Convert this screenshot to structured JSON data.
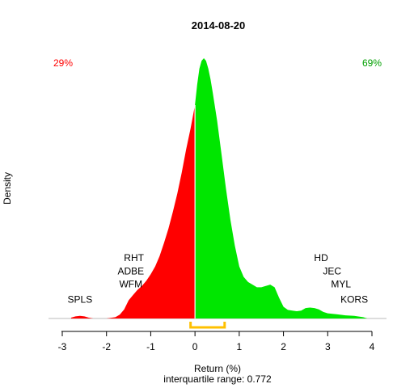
{
  "chart_data": {
    "type": "area",
    "title": "2014-08-20",
    "xlabel": "Return (%)",
    "ylabel": "Density",
    "subtitle": "interquartile range: 0.772",
    "xlim": [
      -3.3,
      4.15
    ],
    "ylim": [
      0,
      1
    ],
    "xticks": [
      -3,
      -2,
      -1,
      0,
      1,
      2,
      3,
      4
    ],
    "tick_labels": [
      "-3",
      "-2",
      "-1",
      "0",
      "1",
      "2",
      "3",
      "4"
    ],
    "pct_negative": "29%",
    "pct_positive": "69%",
    "colors": {
      "negative": "#ff0000",
      "positive": "#00e600",
      "iqr": "#ffc000",
      "axis": "#000000",
      "baseline": "#bbbbbb"
    },
    "split_at": 0,
    "iqr_range": [
      -0.1,
      0.67
    ],
    "density": {
      "x": [
        -2.8,
        -2.7,
        -2.6,
        -2.5,
        -2.4,
        -2.3,
        -2.0,
        -1.8,
        -1.7,
        -1.6,
        -1.5,
        -1.4,
        -1.3,
        -1.2,
        -1.1,
        -1.0,
        -0.9,
        -0.8,
        -0.7,
        -0.6,
        -0.5,
        -0.4,
        -0.3,
        -0.2,
        -0.1,
        0.0,
        0.05,
        0.1,
        0.15,
        0.2,
        0.25,
        0.3,
        0.35,
        0.4,
        0.5,
        0.6,
        0.7,
        0.8,
        0.9,
        1.0,
        1.1,
        1.2,
        1.3,
        1.4,
        1.5,
        1.6,
        1.7,
        1.8,
        1.9,
        2.0,
        2.1,
        2.2,
        2.3,
        2.4,
        2.5,
        2.6,
        2.7,
        2.8,
        2.9,
        3.0,
        3.2,
        3.4,
        3.6,
        3.8,
        3.9
      ],
      "y": [
        0.003,
        0.008,
        0.01,
        0.008,
        0.003,
        0.0,
        0.0,
        0.005,
        0.015,
        0.035,
        0.07,
        0.09,
        0.11,
        0.125,
        0.145,
        0.17,
        0.2,
        0.24,
        0.29,
        0.345,
        0.41,
        0.48,
        0.56,
        0.65,
        0.73,
        0.82,
        0.9,
        0.96,
        0.99,
        1.0,
        0.99,
        0.96,
        0.92,
        0.87,
        0.76,
        0.63,
        0.5,
        0.38,
        0.28,
        0.2,
        0.16,
        0.14,
        0.13,
        0.12,
        0.12,
        0.125,
        0.13,
        0.12,
        0.08,
        0.045,
        0.033,
        0.03,
        0.028,
        0.03,
        0.04,
        0.042,
        0.04,
        0.035,
        0.025,
        0.02,
        0.016,
        0.012,
        0.01,
        0.005,
        0.0
      ]
    },
    "annotations": [
      {
        "text": "SPLS",
        "x": -2.6,
        "y": 0.06
      },
      {
        "text": "WFM",
        "x": -1.45,
        "y": 0.12
      },
      {
        "text": "ADBE",
        "x": -1.45,
        "y": 0.17
      },
      {
        "text": "RHT",
        "x": -1.38,
        "y": 0.22
      },
      {
        "text": "HD",
        "x": 2.85,
        "y": 0.22
      },
      {
        "text": "JEC",
        "x": 3.1,
        "y": 0.17
      },
      {
        "text": "MYL",
        "x": 3.3,
        "y": 0.12
      },
      {
        "text": "KORS",
        "x": 3.6,
        "y": 0.06
      }
    ]
  }
}
